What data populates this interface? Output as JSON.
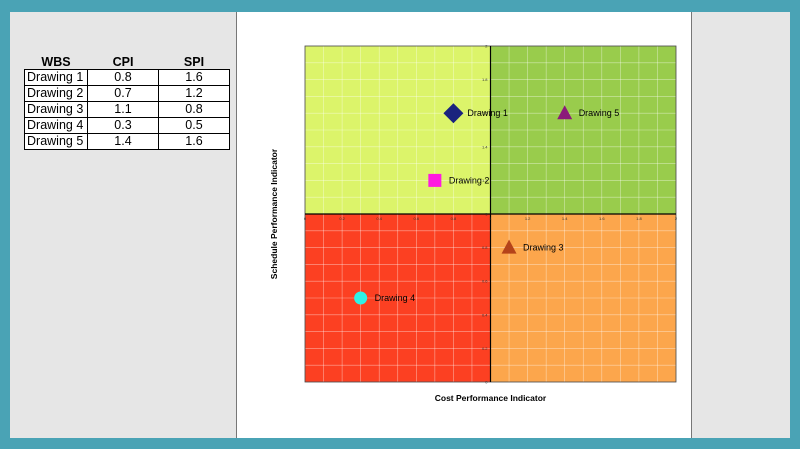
{
  "table": {
    "headers": [
      "WBS",
      "CPI",
      "SPI"
    ],
    "rows": [
      [
        "Drawing 1",
        "0.8",
        "1.6"
      ],
      [
        "Drawing 2",
        "0.7",
        "1.2"
      ],
      [
        "Drawing 3",
        "1.1",
        "0.8"
      ],
      [
        "Drawing 4",
        "0.3",
        "0.5"
      ],
      [
        "Drawing 5",
        "1.4",
        "1.6"
      ]
    ]
  },
  "chart_data": {
    "type": "scatter",
    "xlabel": "Cost Performance Indicator",
    "ylabel": "Schedule Performance Indicator",
    "xlim": [
      0,
      2
    ],
    "ylim": [
      0,
      2
    ],
    "grid": true,
    "x_ticks": [
      "0",
      "0.2",
      "0.4",
      "0.6",
      "0.8",
      "1",
      "1.2",
      "1.4",
      "1.6",
      "1.8",
      "2"
    ],
    "y_ticks": [
      "0",
      "0.2",
      "0.4",
      "0.6",
      "0.8",
      "1",
      "1.2",
      "1.4",
      "1.6",
      "1.8",
      "2"
    ],
    "quadrant_colors": {
      "top_left": "#dcf46a",
      "top_right": "#99cc4c",
      "bottom_left": "#fc4022",
      "bottom_right": "#fca64c"
    },
    "points": [
      {
        "name": "Drawing 1",
        "x": 0.8,
        "y": 1.6,
        "marker": "diamond",
        "color": "#1a237e"
      },
      {
        "name": "Drawing 2",
        "x": 0.7,
        "y": 1.2,
        "marker": "square",
        "color": "#ff19e0"
      },
      {
        "name": "Drawing 3",
        "x": 1.1,
        "y": 0.8,
        "marker": "triangle",
        "color": "#b5431a"
      },
      {
        "name": "Drawing 4",
        "x": 0.3,
        "y": 0.5,
        "marker": "circle",
        "color": "#2ef2e6"
      },
      {
        "name": "Drawing 5",
        "x": 1.4,
        "y": 1.6,
        "marker": "triangle",
        "color": "#8b1a7a"
      }
    ]
  }
}
